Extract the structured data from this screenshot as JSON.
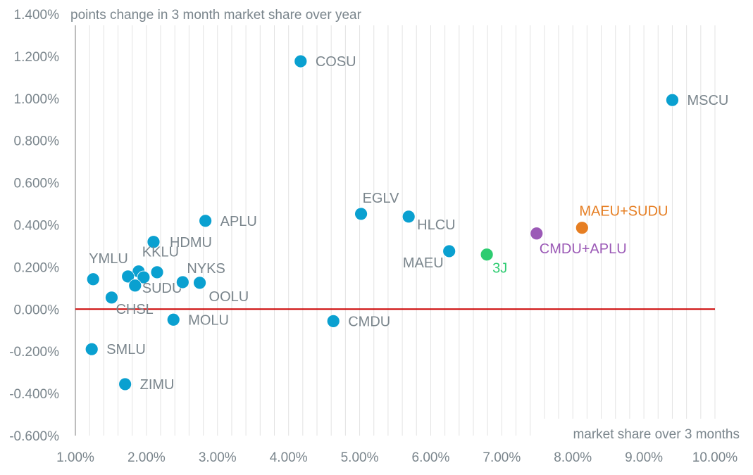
{
  "chart_data": {
    "type": "scatter",
    "title": "",
    "ylabel": "points change in 3 month market share over year",
    "xlabel": "market share over 3 months",
    "xlim": [
      1.0,
      10.0
    ],
    "ylim": [
      -0.6,
      1.4
    ],
    "x_ticks": [
      "1.00%",
      "2.00%",
      "3.00%",
      "4.00%",
      "5.00%",
      "6.00%",
      "7.00%",
      "8.00%",
      "9.00%",
      "10.00%"
    ],
    "y_ticks": [
      "1.400%",
      "1.200%",
      "1.000%",
      "0.800%",
      "0.600%",
      "0.400%",
      "0.200%",
      "0.000%",
      "-0.200%",
      "-0.400%",
      "-0.600%"
    ],
    "grid": "vertical",
    "reference_line": {
      "y": 0.0,
      "color": "#cc0000"
    },
    "points": [
      {
        "label": "COSU",
        "x": 4.17,
        "y": 1.176,
        "color": "#0aa0d0",
        "label_color": "#7a858c",
        "label_pos": "right"
      },
      {
        "label": "MSCU",
        "x": 9.4,
        "y": 0.992,
        "color": "#0aa0d0",
        "label_color": "#7a858c",
        "label_pos": "right"
      },
      {
        "label": "EGLV",
        "x": 5.02,
        "y": 0.452,
        "color": "#0aa0d0",
        "label_color": "#7a858c",
        "label_pos": "above"
      },
      {
        "label": "HLCU",
        "x": 5.69,
        "y": 0.439,
        "color": "#0aa0d0",
        "label_color": "#7a858c",
        "label_pos": "below-right"
      },
      {
        "label": "APLU",
        "x": 2.83,
        "y": 0.419,
        "color": "#0aa0d0",
        "label_color": "#7a858c",
        "label_pos": "right"
      },
      {
        "label": "HDMU",
        "x": 2.1,
        "y": 0.319,
        "color": "#0aa0d0",
        "label_color": "#7a858c",
        "label_pos": "right"
      },
      {
        "label": "MAEU",
        "x": 6.26,
        "y": 0.275,
        "color": "#0aa0d0",
        "label_color": "#7a858c",
        "label_pos": "below-left"
      },
      {
        "label": "YMLU",
        "x": 1.25,
        "y": 0.142,
        "color": "#0aa0d0",
        "label_color": "#7a858c",
        "label_pos": "above"
      },
      {
        "label": "KKLU",
        "x": 1.89,
        "y": 0.179,
        "color": "#0aa0d0",
        "label_color": "#7a858c",
        "label_pos": "above"
      },
      {
        "label": "",
        "x": 1.74,
        "y": 0.155,
        "color": "#0aa0d0",
        "label_color": "#7a858c",
        "label_pos": "none"
      },
      {
        "label": "",
        "x": 1.96,
        "y": 0.151,
        "color": "#0aa0d0",
        "label_color": "#7a858c",
        "label_pos": "none"
      },
      {
        "label": "SUDU",
        "x": 1.84,
        "y": 0.112,
        "color": "#0aa0d0",
        "label_color": "#7a858c",
        "label_pos": "below-right"
      },
      {
        "label": "",
        "x": 2.15,
        "y": 0.175,
        "color": "#0aa0d0",
        "label_color": "#7a858c",
        "label_pos": "none"
      },
      {
        "label": "NYKS",
        "x": 2.51,
        "y": 0.128,
        "color": "#0aa0d0",
        "label_color": "#7a858c",
        "label_pos": "above-right"
      },
      {
        "label": "OOLU",
        "x": 2.75,
        "y": 0.125,
        "color": "#0aa0d0",
        "label_color": "#7a858c",
        "label_pos": "below-right"
      },
      {
        "label": "CHSL",
        "x": 1.51,
        "y": 0.055,
        "color": "#0aa0d0",
        "label_color": "#7a858c",
        "label_pos": "below-right"
      },
      {
        "label": "MOLU",
        "x": 2.38,
        "y": -0.05,
        "color": "#0aa0d0",
        "label_color": "#7a858c",
        "label_pos": "right"
      },
      {
        "label": "CMDU",
        "x": 4.63,
        "y": -0.057,
        "color": "#0aa0d0",
        "label_color": "#7a858c",
        "label_pos": "right"
      },
      {
        "label": "SMLU",
        "x": 1.23,
        "y": -0.19,
        "color": "#0aa0d0",
        "label_color": "#7a858c",
        "label_pos": "right"
      },
      {
        "label": "ZIMU",
        "x": 1.7,
        "y": -0.356,
        "color": "#0aa0d0",
        "label_color": "#7a858c",
        "label_pos": "right"
      },
      {
        "label": "3J",
        "x": 6.79,
        "y": 0.259,
        "color": "#2ecc71",
        "label_color": "#2ecc71",
        "label_pos": "below-right"
      },
      {
        "label": "CMDU+APLU",
        "x": 7.49,
        "y": 0.359,
        "color": "#9b59b6",
        "label_color": "#9b59b6",
        "label_pos": "below-right"
      },
      {
        "label": "MAEU+SUDU",
        "x": 8.13,
        "y": 0.386,
        "color": "#e67e22",
        "label_color": "#e67e22",
        "label_pos": "above-right"
      }
    ]
  }
}
